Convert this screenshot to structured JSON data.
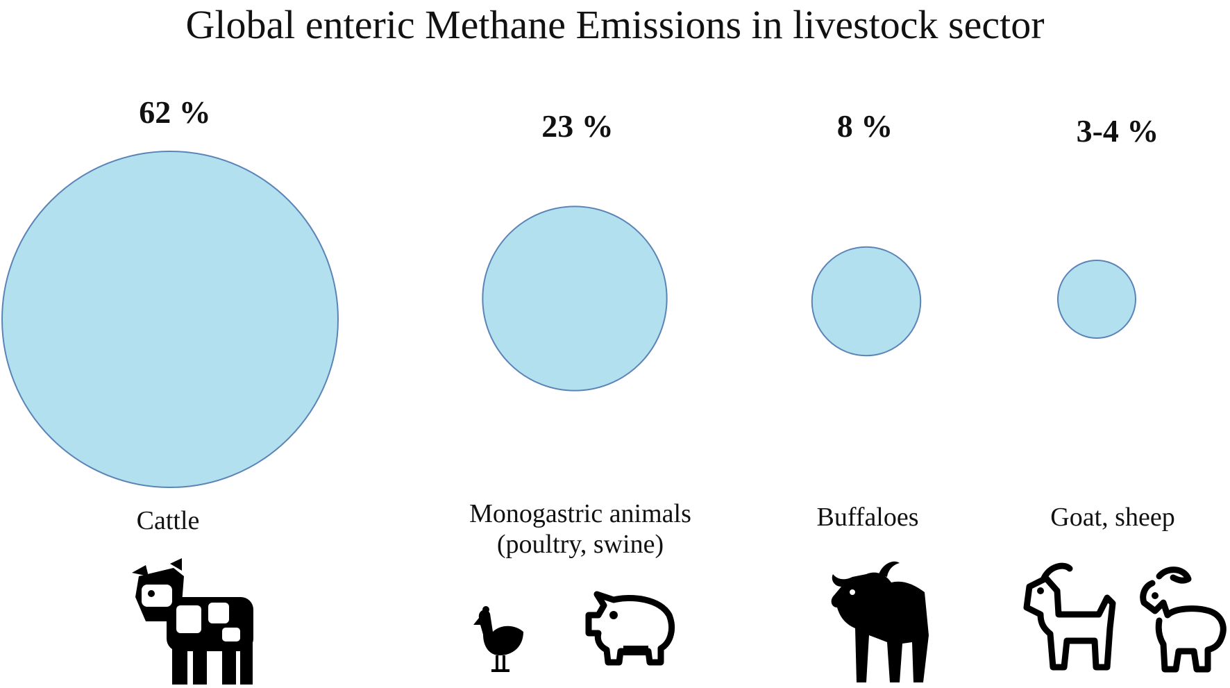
{
  "title": "Global enteric Methane Emissions in livestock sector",
  "colors": {
    "bubble_fill": "#b3e0ef",
    "bubble_stroke": "#5b84b6",
    "text": "#111111",
    "icon": "#000000"
  },
  "chart_data": {
    "type": "bubble",
    "title": "Global enteric Methane Emissions in livestock sector",
    "categories": [
      "Cattle",
      "Monogastric animals\n(poultry, swine)",
      "Buffaloes",
      "Goat, sheep"
    ],
    "values": [
      62,
      23,
      8,
      3.5
    ],
    "value_labels": [
      "62 %",
      "23 %",
      "8 %",
      "3-4 %"
    ],
    "icons": [
      [
        "cow-icon"
      ],
      [
        "chicken-icon",
        "pig-icon"
      ],
      [
        "buffalo-icon"
      ],
      [
        "goat-icon",
        "sheep-icon"
      ]
    ]
  }
}
